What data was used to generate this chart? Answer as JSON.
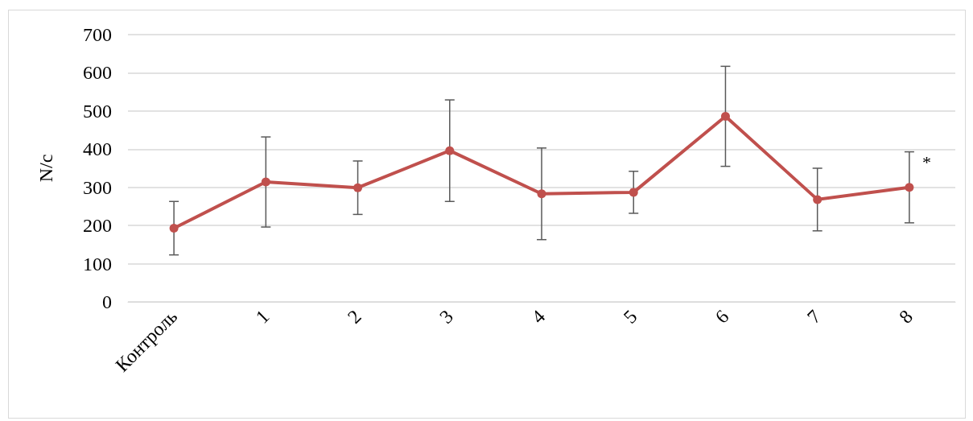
{
  "chart_data": {
    "type": "line",
    "ylabel": "N/c",
    "categories": [
      "Контроль",
      "1",
      "2",
      "3",
      "4",
      "5",
      "6",
      "7",
      "8"
    ],
    "series": [
      {
        "color": "#c0504d",
        "values": [
          193,
          314,
          299,
          396,
          283,
          287,
          486,
          268,
          300
        ],
        "errors": [
          70,
          118,
          70,
          133,
          120,
          55,
          131,
          82,
          93
        ]
      }
    ],
    "ylim": [
      0,
      700
    ],
    "yticks": [
      0,
      100,
      200,
      300,
      400,
      500,
      600,
      700
    ],
    "grid": "y",
    "marker": "circle",
    "line_style": "solid",
    "annotations": [
      {
        "text": "*",
        "x": "8",
        "y": 365
      }
    ]
  }
}
